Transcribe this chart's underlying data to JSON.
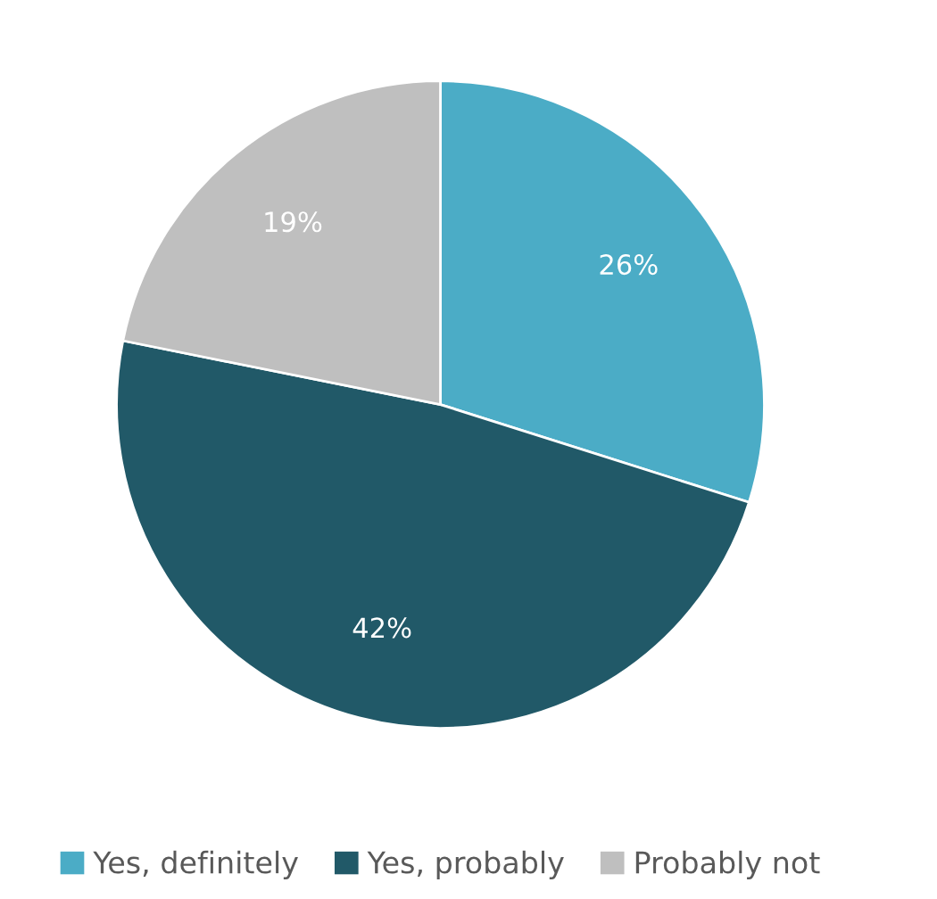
{
  "chart_data": {
    "type": "pie",
    "categories": [
      "Yes, definitely",
      "Yes, probably",
      "Probably not"
    ],
    "values": [
      26,
      42,
      19
    ],
    "colors": [
      "#4bacc6",
      "#215968",
      "#bfbfbf"
    ],
    "data_labels": true,
    "value_labels": [
      "26%",
      "42%",
      "19%"
    ],
    "legend": "bottom"
  }
}
